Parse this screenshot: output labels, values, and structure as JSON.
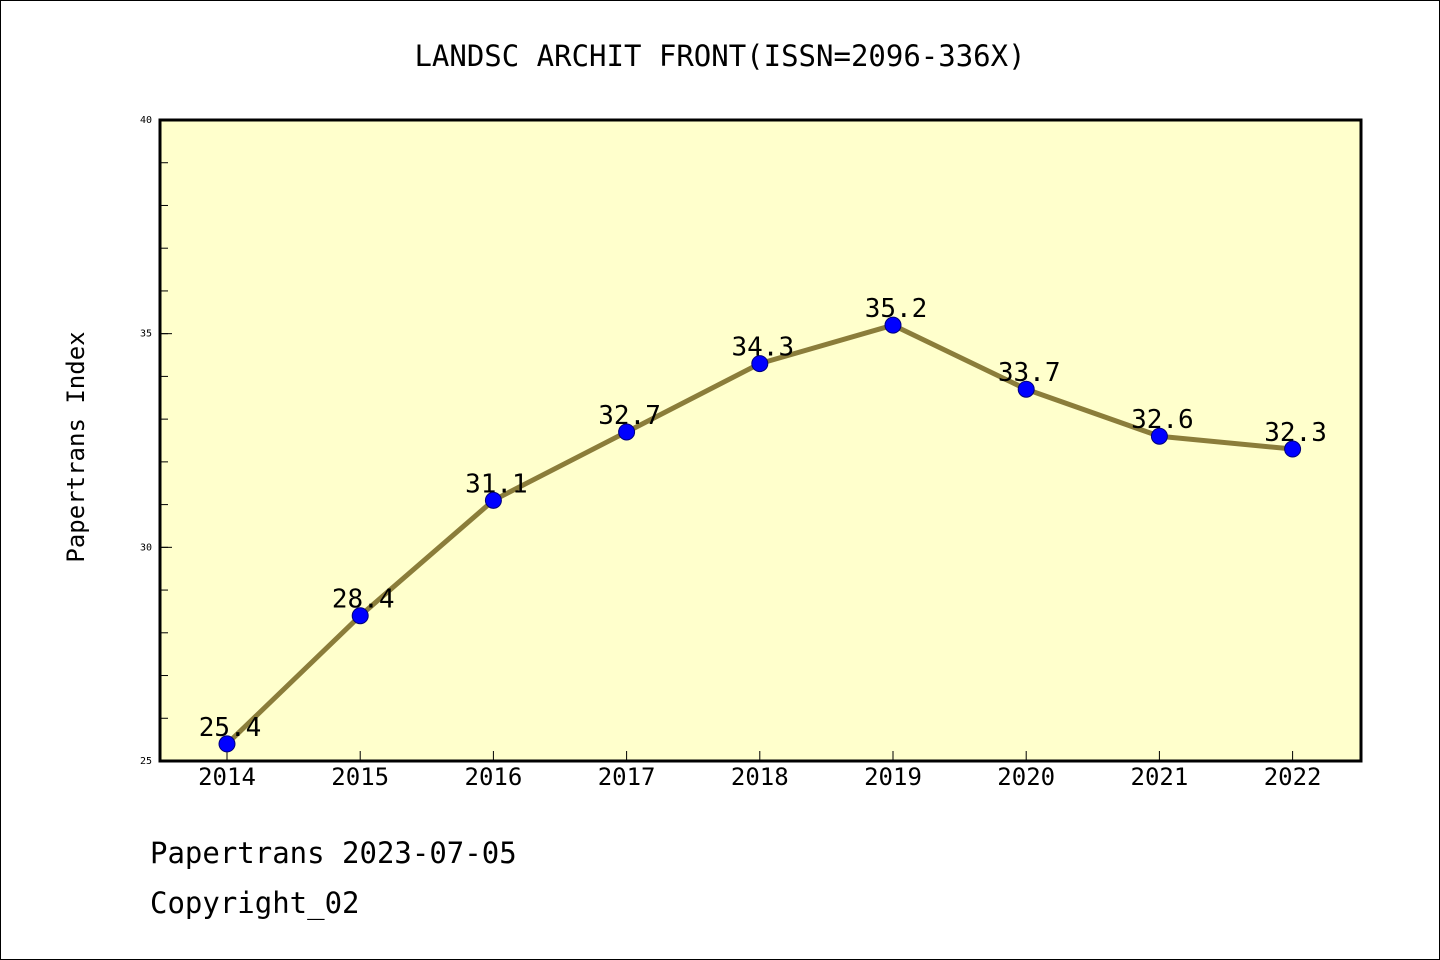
{
  "chart_data": {
    "type": "line",
    "title": "LANDSC ARCHIT FRONT(ISSN=2096-336X)",
    "xlabel": "",
    "ylabel": "Papertrans Index",
    "categories": [
      "2014",
      "2015",
      "2016",
      "2017",
      "2018",
      "2019",
      "2020",
      "2021",
      "2022"
    ],
    "series": [
      {
        "values": [
          25.4,
          28.4,
          31.1,
          32.7,
          34.3,
          35.2,
          33.7,
          32.6,
          32.3
        ]
      }
    ],
    "data_labels": [
      "25.4",
      "28.4",
      "31.1",
      "32.7",
      "34.3",
      "35.2",
      "33.7",
      "32.6",
      "32.3"
    ],
    "ylim": [
      25,
      40
    ],
    "yticks": [
      25,
      30,
      35,
      40
    ],
    "grid": false,
    "legend": "none",
    "colors": {
      "plot_background": "#ffffcc",
      "line": "#8b7d3a",
      "marker": "#0000ff"
    }
  },
  "footer": {
    "line1": "Papertrans 2023-07-05",
    "line2": "Copyright_02"
  }
}
